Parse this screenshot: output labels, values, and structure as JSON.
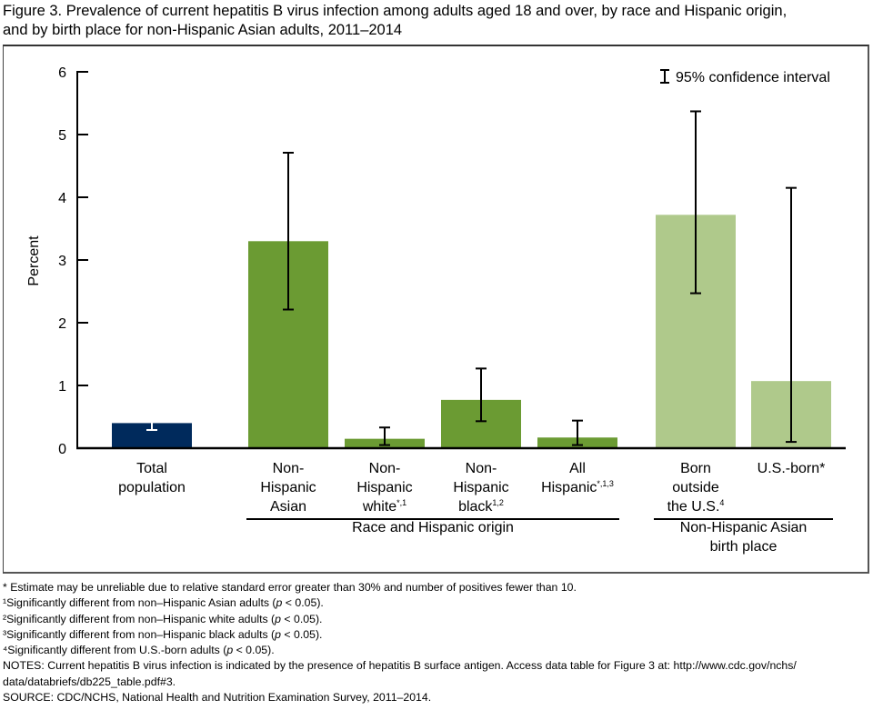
{
  "title_lines": [
    "Figure 3. Prevalence of current hepatitis B virus infection among adults aged 18 and over, by race and Hispanic origin,",
    "and by birth place for non-Hispanic Asian adults, 2011–2014"
  ],
  "chart_data": {
    "type": "bar",
    "title": "Prevalence of current hepatitis B virus infection among adults aged 18 and over, by race and Hispanic origin, and by birth place for non-Hispanic Asian adults, 2011–2014",
    "ylabel": "Percent",
    "xlabel": "",
    "ylim": [
      0,
      6
    ],
    "yticks": [
      0,
      1,
      2,
      3,
      4,
      5,
      6
    ],
    "grid": false,
    "legend": {
      "label": "95% confidence interval",
      "placement": "top-right"
    },
    "categories": [
      {
        "lines": [
          "Total",
          "population"
        ],
        "value": 0.4,
        "ci": [
          0.29,
          0.5
        ],
        "color": "#002a5c",
        "whisker_color": "#ffffff"
      },
      {
        "lines": [
          "Non-",
          "Hispanic",
          "Asian"
        ],
        "value": 3.3,
        "ci": [
          2.21,
          4.71
        ],
        "color": "#6b9b33",
        "whisker_color": "#000000"
      },
      {
        "lines": [
          "Non-",
          "Hispanic",
          "white"
        ],
        "sup": "*,1",
        "value": 0.15,
        "ci": [
          0.05,
          0.33
        ],
        "color": "#6b9b33",
        "whisker_color": "#000000"
      },
      {
        "lines": [
          "Non-",
          "Hispanic",
          "black"
        ],
        "sup": "1,2",
        "value": 0.77,
        "ci": [
          0.43,
          1.27
        ],
        "color": "#6b9b33",
        "whisker_color": "#000000"
      },
      {
        "lines": [
          "All",
          "Hispanic"
        ],
        "sup": "*,1,3",
        "value": 0.17,
        "ci": [
          0.05,
          0.44
        ],
        "color": "#6b9b33",
        "whisker_color": "#000000"
      },
      {
        "lines": [
          "Born",
          "outside",
          "the U.S."
        ],
        "sup": "4",
        "value": 3.72,
        "ci": [
          2.47,
          5.37
        ],
        "color": "#afc98b",
        "whisker_color": "#000000"
      },
      {
        "lines": [
          "U.S.-born*"
        ],
        "value": 1.07,
        "ci": [
          0.1,
          4.15
        ],
        "color": "#afc98b",
        "whisker_color": "#000000"
      }
    ],
    "groups": [
      {
        "label_lines": [
          "Race and Hispanic origin"
        ],
        "from": 1,
        "to": 4
      },
      {
        "label_lines": [
          "Non-Hispanic Asian",
          "birth place"
        ],
        "from": 5,
        "to": 6
      }
    ]
  },
  "footnotes": [
    "* Estimate may be unreliable due to relative standard error greater than 30% and number of positives fewer than 10.",
    "¹Significantly different from non–Hispanic Asian adults (p < 0.05).",
    "²Significantly different from non–Hispanic white adults (p < 0.05).",
    "³Significantly different from non–Hispanic black adults (p < 0.05).",
    "⁴Significantly different from U.S.-born adults (p < 0.05).",
    "NOTES: Current hepatitis B virus infection is indicated by the presence of hepatitis B surface antigen. Access data table for Figure 3 at: http://www.cdc.gov/nchs/",
    "data/databriefs/db225_table.pdf#3.",
    "SOURCE: CDC/NCHS, National Health and Nutrition Examination Survey, 2011–2014."
  ]
}
